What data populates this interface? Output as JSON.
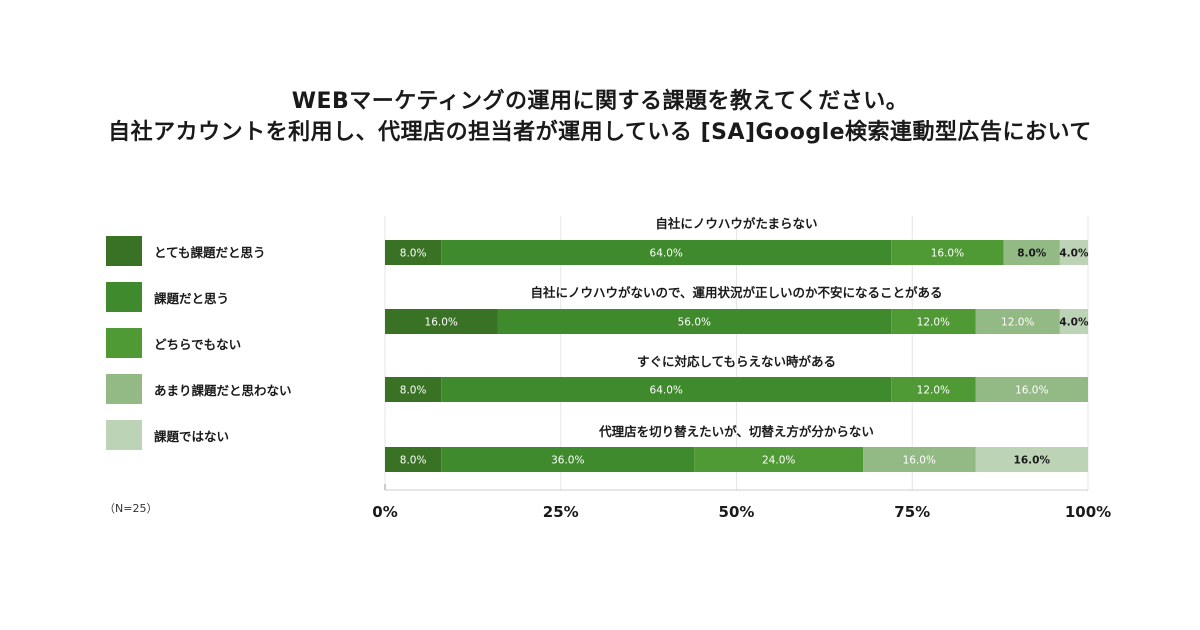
{
  "title_lines": [
    "WEBマーケティングの運用に関する課題を教えてください。",
    "自社アカウントを利用し、代理店の担当者が運用している [SA]Google検索連動型広告において"
  ],
  "sample_note": "（N=25）",
  "colors": [
    "#3a7225",
    "#3f8a2c",
    "#4f9a34",
    "#93b985",
    "#bcd3b6"
  ],
  "chart_data": {
    "type": "bar",
    "orientation": "horizontal",
    "stacked": true,
    "percent": true,
    "xlim": [
      0,
      100
    ],
    "xticks": [
      "0%",
      "25%",
      "50%",
      "75%",
      "100%"
    ],
    "legend_position": "left",
    "grid": true,
    "series": [
      {
        "name": "とても課題だと思う",
        "values": [
          8.0,
          16.0,
          8.0,
          8.0
        ]
      },
      {
        "name": "課題だと思う",
        "values": [
          64.0,
          56.0,
          64.0,
          36.0
        ]
      },
      {
        "name": "どちらでもない",
        "values": [
          16.0,
          12.0,
          12.0,
          24.0
        ]
      },
      {
        "name": "あまり課題だと思わない",
        "values": [
          8.0,
          12.0,
          16.0,
          16.0
        ]
      },
      {
        "name": "課題ではない",
        "values": [
          4.0,
          4.0,
          0,
          16.0
        ]
      }
    ],
    "categories": [
      "自社にノウハウがたまらない",
      "自社にノウハウがないので、運用状況が正しいのか不安になることがある",
      "すぐに対応してもらえない時がある",
      "代理店を切り替えたいが、切替え方が分からない"
    ],
    "value_labels": [
      [
        "8.0%",
        "64.0%",
        "16.0%",
        "8.0%",
        "4.0%"
      ],
      [
        "16.0%",
        "56.0%",
        "12.0%",
        "12.0%",
        "4.0%"
      ],
      [
        "8.0%",
        "64.0%",
        "12.0%",
        "16.0%",
        ""
      ],
      [
        "8.0%",
        "36.0%",
        "24.0%",
        "16.0%",
        "16.0%"
      ]
    ]
  }
}
